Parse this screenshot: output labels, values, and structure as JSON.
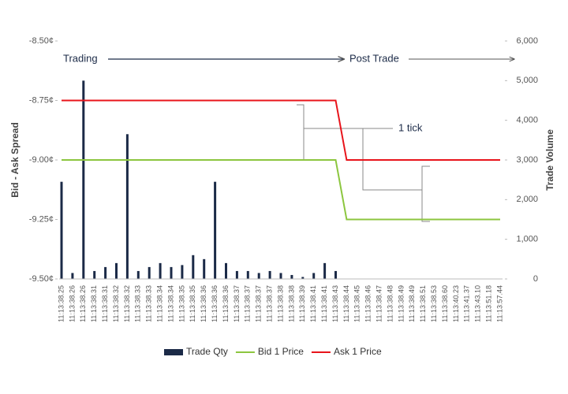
{
  "chart_data": {
    "type": "bar",
    "ylabel": "Bid - Ask Spread",
    "y2label": "Trade Volume",
    "annotations": {
      "trading": "Trading",
      "post_trade": "Post Trade",
      "tick": "1 tick"
    },
    "categories": [
      "11:13:38.25",
      "11:13:38.26",
      "11:13:38.26",
      "11:13:38.31",
      "11:13:38.31",
      "11:13:38.32",
      "11:13:38.32",
      "11:13:38.33",
      "11:13:38.33",
      "11:13:38.34",
      "11:13:38.34",
      "11:13:38.35",
      "11:13:38.35",
      "11:13:38.36",
      "11:13:38.36",
      "11:13:38.36",
      "11:13:38.37",
      "11:13:38.37",
      "11:13:38.37",
      "11:13:38.37",
      "11:13:38.38",
      "11:13:38.38",
      "11:13:38.39",
      "11:13:38.41",
      "11:13:38.41",
      "11:13:38.43",
      "11:13:38.44",
      "11:13:38.45",
      "11:13:38.46",
      "11:13:38.47",
      "11:13:38.48",
      "11:13:38.49",
      "11:13:38.49",
      "11:13:38.51",
      "11:13:38.53",
      "11:13:38.60",
      "11:13:40.23",
      "11:13:41.37",
      "11:13:43.10",
      "11:13:51.18",
      "11:13:57.44"
    ],
    "series": [
      {
        "name": "Trade Qty",
        "type": "bar",
        "axis": "y2",
        "color": "#1b2a47",
        "values": [
          2450,
          150,
          5000,
          200,
          300,
          400,
          3650,
          200,
          300,
          400,
          300,
          350,
          600,
          500,
          2450,
          400,
          200,
          200,
          150,
          200,
          150,
          100,
          50,
          150,
          400,
          200,
          0,
          0,
          0,
          0,
          0,
          0,
          0,
          0,
          0,
          0,
          0,
          0,
          0,
          0,
          0
        ]
      },
      {
        "name": "Bid 1 Price",
        "type": "line",
        "color": "#8cc63f",
        "values": [
          -9.0,
          -9.0,
          -9.0,
          -9.0,
          -9.0,
          -9.0,
          -9.0,
          -9.0,
          -9.0,
          -9.0,
          -9.0,
          -9.0,
          -9.0,
          -9.0,
          -9.0,
          -9.0,
          -9.0,
          -9.0,
          -9.0,
          -9.0,
          -9.0,
          -9.0,
          -9.0,
          -9.0,
          -9.0,
          -9.0,
          -9.25,
          -9.25,
          -9.25,
          -9.25,
          -9.25,
          -9.25,
          -9.25,
          -9.25,
          -9.25,
          -9.25,
          -9.25,
          -9.25,
          -9.25,
          -9.25,
          -9.25
        ]
      },
      {
        "name": "Ask 1 Price",
        "type": "line",
        "color": "#e8141b",
        "values": [
          -8.75,
          -8.75,
          -8.75,
          -8.75,
          -8.75,
          -8.75,
          -8.75,
          -8.75,
          -8.75,
          -8.75,
          -8.75,
          -8.75,
          -8.75,
          -8.75,
          -8.75,
          -8.75,
          -8.75,
          -8.75,
          -8.75,
          -8.75,
          -8.75,
          -8.75,
          -8.75,
          -8.75,
          -8.75,
          -8.75,
          -9.0,
          -9.0,
          -9.0,
          -9.0,
          -9.0,
          -9.0,
          -9.0,
          -9.0,
          -9.0,
          -9.0,
          -9.0,
          -9.0,
          -9.0,
          -9.0,
          -9.0
        ]
      }
    ],
    "ylim": [
      -9.5,
      -8.5
    ],
    "yticks": [
      {
        "value": -9.5,
        "label": "-9.50¢"
      },
      {
        "value": -9.25,
        "label": "-9.25¢"
      },
      {
        "value": -9.0,
        "label": "-9.00¢"
      },
      {
        "value": -8.75,
        "label": "-8.75¢"
      },
      {
        "value": -8.5,
        "label": "-8.50¢"
      }
    ],
    "y2lim": [
      0,
      6000
    ],
    "y2ticks": [
      0,
      {
        "value": 1000,
        "label": "1,000"
      },
      {
        "value": 2000,
        "label": "2,000"
      },
      {
        "value": 3000,
        "label": "3,000"
      },
      {
        "value": 4000,
        "label": "4,000"
      },
      {
        "value": 5000,
        "label": "5,000"
      },
      {
        "value": 6000,
        "label": "6,000"
      }
    ],
    "legend": "bottom"
  }
}
